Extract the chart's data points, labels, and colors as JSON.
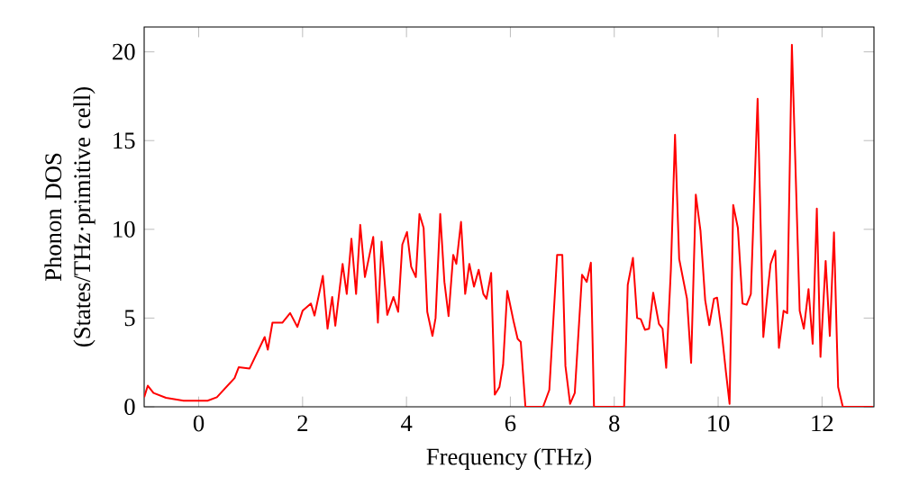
{
  "chart_data": {
    "type": "line",
    "xlabel": "Frequency (THz)",
    "ylabel": "Phonon DOS (States/THz·primitive cell)",
    "xlim": [
      -1.05,
      13
    ],
    "ylim": [
      0,
      21.4
    ],
    "xticks": [
      0,
      2,
      4,
      6,
      8,
      10,
      12
    ],
    "yticks": [
      0,
      5,
      10,
      15,
      20
    ],
    "grid": false,
    "marker": "none",
    "line_style": "solid",
    "series": [
      {
        "color": "#ff0000",
        "x": [
          -1.05,
          -0.98,
          -0.87,
          -0.63,
          -0.29,
          0.17,
          0.35,
          0.69,
          0.77,
          0.98,
          1.27,
          1.33,
          1.42,
          1.61,
          1.76,
          1.9,
          2.0,
          2.16,
          2.23,
          2.39,
          2.48,
          2.57,
          2.63,
          2.77,
          2.85,
          2.94,
          3.03,
          3.11,
          3.2,
          3.36,
          3.45,
          3.52,
          3.63,
          3.75,
          3.84,
          3.92,
          4.01,
          4.09,
          4.18,
          4.25,
          4.33,
          4.4,
          4.5,
          4.56,
          4.65,
          4.73,
          4.81,
          4.9,
          4.96,
          5.05,
          5.13,
          5.21,
          5.3,
          5.39,
          5.48,
          5.54,
          5.63,
          5.7,
          5.79,
          5.86,
          5.94,
          6.06,
          6.14,
          6.2,
          6.29,
          6.63,
          6.75,
          6.9,
          7.0,
          7.06,
          7.15,
          7.24,
          7.38,
          7.47,
          7.55,
          7.61,
          8.19,
          8.26,
          8.36,
          8.44,
          8.51,
          8.59,
          8.67,
          8.75,
          8.86,
          8.93,
          9.0,
          9.09,
          9.17,
          9.25,
          9.4,
          9.48,
          9.57,
          9.66,
          9.75,
          9.83,
          9.92,
          9.98,
          10.07,
          10.15,
          10.22,
          10.29,
          10.38,
          10.47,
          10.55,
          10.63,
          10.76,
          10.87,
          10.96,
          11.01,
          11.1,
          11.17,
          11.26,
          11.33,
          11.42,
          11.57,
          11.65,
          11.74,
          11.82,
          11.9,
          11.97,
          12.07,
          12.15,
          12.23,
          12.31,
          12.4,
          12.98
        ],
        "values": [
          0.54,
          1.19,
          0.78,
          0.51,
          0.34,
          0.34,
          0.54,
          1.62,
          2.23,
          2.16,
          3.93,
          3.22,
          4.74,
          4.74,
          5.28,
          4.5,
          5.41,
          5.82,
          5.14,
          7.38,
          4.4,
          6.19,
          4.57,
          8.05,
          6.36,
          9.47,
          6.36,
          10.25,
          7.31,
          9.57,
          4.74,
          9.3,
          5.18,
          6.19,
          5.35,
          9.14,
          9.85,
          7.89,
          7.31,
          10.86,
          10.08,
          5.35,
          3.99,
          5.0,
          10.86,
          7.04,
          5.11,
          8.56,
          8.05,
          10.42,
          6.36,
          8.05,
          6.77,
          7.72,
          6.36,
          6.09,
          7.54,
          0.68,
          1.12,
          2.37,
          6.53,
          4.84,
          3.83,
          3.65,
          0,
          0,
          0.95,
          8.56,
          8.56,
          2.3,
          0.17,
          0.78,
          7.44,
          7.04,
          8.12,
          0,
          0,
          6.87,
          8.39,
          5.0,
          4.94,
          4.34,
          4.4,
          6.43,
          4.67,
          4.4,
          2.2,
          7.72,
          15.33,
          8.33,
          6.09,
          2.47,
          11.95,
          9.92,
          6.02,
          4.6,
          6.09,
          6.15,
          4.16,
          1.96,
          0.17,
          11.37,
          10.08,
          5.82,
          5.75,
          6.36,
          17.36,
          3.93,
          6.7,
          8.05,
          8.8,
          3.32,
          5.41,
          5.28,
          20.4,
          5.41,
          4.4,
          6.63,
          3.55,
          11.17,
          2.81,
          8.22,
          3.99,
          9.82,
          1.12,
          0,
          0
        ]
      }
    ]
  }
}
